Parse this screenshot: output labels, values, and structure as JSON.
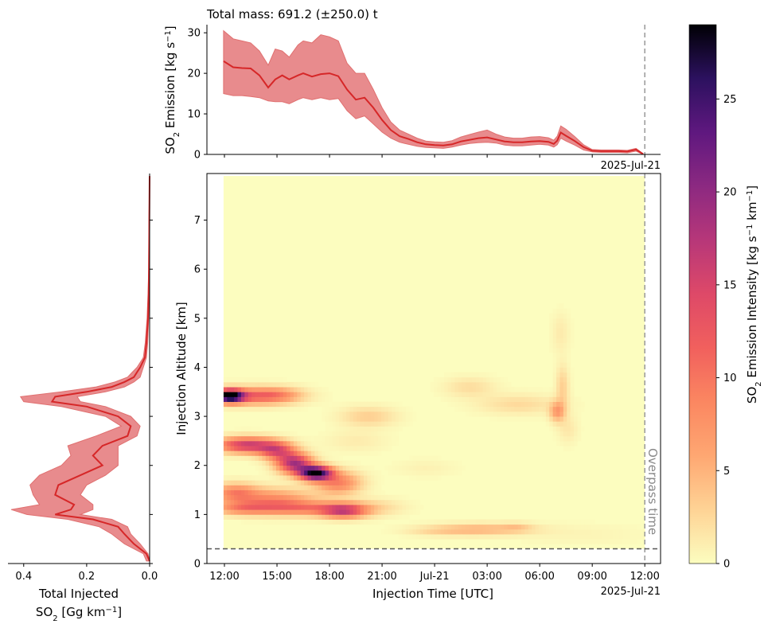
{
  "figure": {
    "top_title": "Total mass: 691.2 (±250.0) t",
    "top_ylabel": "SO₂ Emission [kg s⁻¹]",
    "heat_ylabel": "Injection Altitude [km]",
    "heat_xlabel": "Injection Time [UTC]",
    "date_label": "2025-Jul-21",
    "date_label_top": "2025-Jul-21",
    "overpass_label": "Overpass time",
    "left_xlabel_line1": "Total Injected",
    "left_xlabel_line2": "SO₂ [Gg km⁻¹]",
    "colorbar_label": "SO₂ Emission Intensity [kg s⁻¹ km⁻¹]",
    "colors": {
      "series": "#d62728",
      "band": "#e88b8d",
      "overpass": "#999999",
      "threshold": "#555555"
    }
  },
  "chart_data": [
    {
      "type": "area",
      "name": "emission-time-series",
      "title": "Total mass: 691.2 (±250.0) t",
      "ylabel": "SO₂ Emission [kg s⁻¹]",
      "x_unit": "hours since 2025-07-20 12:00 UTC",
      "xlim": [
        -1,
        24.9
      ],
      "ylim": [
        0,
        32
      ],
      "yticks": [
        0,
        10,
        20,
        30
      ],
      "x": [
        -0.05,
        0.5,
        1,
        1.5,
        2,
        2.5,
        2.9,
        3.3,
        3.7,
        4.2,
        4.5,
        5,
        5.5,
        6,
        6.5,
        7,
        7.5,
        8,
        8.5,
        9,
        9.5,
        10,
        10.5,
        11,
        11.5,
        12,
        12.5,
        13,
        13.5,
        14,
        14.5,
        15,
        15.5,
        16,
        16.5,
        17,
        17.5,
        18,
        18.5,
        18.8,
        19,
        19.2,
        19.5,
        20,
        20.5,
        21,
        21.5,
        22,
        22.5,
        23,
        23.5,
        23.9
      ],
      "values": [
        23,
        21.5,
        21.3,
        21.2,
        19.5,
        16.5,
        18.5,
        19.5,
        18.5,
        19.5,
        20,
        19.2,
        19.8,
        20,
        19.3,
        16,
        13.5,
        14,
        11.5,
        8.5,
        6,
        4.5,
        3.8,
        3,
        2.5,
        2.3,
        2.2,
        2.5,
        3.2,
        3.6,
        4,
        4.2,
        3.7,
        3.2,
        3,
        3,
        3.2,
        3.3,
        3.1,
        2.6,
        3.4,
        5.4,
        4.6,
        3.3,
        1.8,
        0.9,
        0.8,
        0.8,
        0.8,
        0.7,
        1.2,
        0.1
      ],
      "lower": [
        15,
        14.5,
        14.5,
        14.3,
        14,
        13.2,
        13,
        13,
        12.5,
        13.5,
        14,
        13.5,
        14,
        13.5,
        13.8,
        10.8,
        8.8,
        9.5,
        7.5,
        5.5,
        4,
        3,
        2.5,
        2,
        1.7,
        1.6,
        1.5,
        1.8,
        2.3,
        2.7,
        2.9,
        3,
        2.8,
        2.3,
        2.1,
        2.1,
        2.3,
        2.5,
        2.3,
        1.8,
        2.4,
        4,
        3.3,
        2.3,
        1.1,
        0.6,
        0.5,
        0.5,
        0.5,
        0.4,
        0.8,
        0
      ],
      "upper": [
        30.5,
        28.5,
        28,
        27.5,
        25.5,
        22,
        26,
        25.5,
        24,
        27,
        28,
        27.5,
        29.5,
        29,
        28,
        22.5,
        20,
        20,
        16,
        11.5,
        8,
        6,
        5,
        4,
        3.3,
        3.1,
        3,
        3.4,
        4.3,
        4.9,
        5.5,
        6,
        5,
        4.3,
        4,
        4,
        4.3,
        4.4,
        4.1,
        3.5,
        4.5,
        7,
        6.2,
        4.4,
        2.4,
        1.2,
        1.1,
        1.1,
        1.1,
        1,
        1.5,
        0.2
      ]
    },
    {
      "type": "heatmap",
      "name": "emission-intensity",
      "xlabel": "Injection Time [UTC]",
      "ylabel": "Injection Altitude [km]",
      "x_unit": "hours since 2025-07-20 12:00 UTC",
      "xlim": [
        -1,
        24.9
      ],
      "ylim": [
        0,
        7.95
      ],
      "xticks": [
        0,
        3,
        6,
        9,
        12,
        15,
        18,
        21,
        24
      ],
      "xticklabels": [
        "12:00",
        "15:00",
        "18:00",
        "21:00",
        "Jul-21",
        "03:00",
        "06:00",
        "09:00",
        "12:00"
      ],
      "yticks": [
        0,
        1,
        2,
        3,
        4,
        5,
        6,
        7
      ],
      "data_extent": {
        "time": [
          -0.05,
          24
        ],
        "altitude": [
          0.3,
          7.9
        ]
      },
      "colormap": "magma_r",
      "clim": [
        0,
        29
      ],
      "features": [
        {
          "t": 0.3,
          "alt": 3.42,
          "st": 0.55,
          "sa": 0.09,
          "v": 28
        },
        {
          "t": 1.8,
          "alt": 3.42,
          "st": 1.5,
          "sa": 0.12,
          "v": 11
        },
        {
          "t": 3.2,
          "alt": 3.45,
          "st": 0.9,
          "sa": 0.1,
          "v": 3
        },
        {
          "t": 1.3,
          "alt": 2.42,
          "st": 1.2,
          "sa": 0.11,
          "v": 16
        },
        {
          "t": 3.0,
          "alt": 2.3,
          "st": 0.7,
          "sa": 0.12,
          "v": 12
        },
        {
          "t": 4.0,
          "alt": 2.05,
          "st": 0.7,
          "sa": 0.14,
          "v": 18
        },
        {
          "t": 5.2,
          "alt": 1.85,
          "st": 0.65,
          "sa": 0.1,
          "v": 28
        },
        {
          "t": 6.5,
          "alt": 1.65,
          "st": 0.9,
          "sa": 0.16,
          "v": 9
        },
        {
          "t": 0.6,
          "alt": 1.45,
          "st": 0.9,
          "sa": 0.13,
          "v": 8
        },
        {
          "t": 2.8,
          "alt": 1.3,
          "st": 1.6,
          "sa": 0.16,
          "v": 8
        },
        {
          "t": 1.0,
          "alt": 1.13,
          "st": 1.2,
          "sa": 0.09,
          "v": 7
        },
        {
          "t": 4.5,
          "alt": 1.13,
          "st": 1.8,
          "sa": 0.1,
          "v": 8
        },
        {
          "t": 6.8,
          "alt": 1.08,
          "st": 0.9,
          "sa": 0.1,
          "v": 14
        },
        {
          "t": 8.5,
          "alt": 1.15,
          "st": 1.2,
          "sa": 0.12,
          "v": 2.5
        },
        {
          "t": 8.2,
          "alt": 3.0,
          "st": 1.1,
          "sa": 0.14,
          "v": 3.2
        },
        {
          "t": 7.5,
          "alt": 2.5,
          "st": 1.2,
          "sa": 0.15,
          "v": 1.2
        },
        {
          "t": 11.5,
          "alt": 1.95,
          "st": 1.2,
          "sa": 0.12,
          "v": 0.8
        },
        {
          "t": 14.0,
          "alt": 3.6,
          "st": 1.0,
          "sa": 0.14,
          "v": 2.2
        },
        {
          "t": 16.8,
          "alt": 3.25,
          "st": 1.6,
          "sa": 0.14,
          "v": 2.4
        },
        {
          "t": 19.0,
          "alt": 3.1,
          "st": 0.3,
          "sa": 0.14,
          "v": 6.5
        },
        {
          "t": 19.3,
          "alt": 3.6,
          "st": 0.25,
          "sa": 0.3,
          "v": 3.2
        },
        {
          "t": 19.2,
          "alt": 4.7,
          "st": 0.35,
          "sa": 0.28,
          "v": 1.3
        },
        {
          "t": 19.6,
          "alt": 2.75,
          "st": 0.4,
          "sa": 0.2,
          "v": 1.5
        },
        {
          "t": 14.5,
          "alt": 0.7,
          "st": 2.0,
          "sa": 0.08,
          "v": 5
        },
        {
          "t": 16.7,
          "alt": 0.75,
          "st": 0.6,
          "sa": 0.06,
          "v": 2
        },
        {
          "t": 12.0,
          "alt": 0.65,
          "st": 1.2,
          "sa": 0.06,
          "v": 1.3
        },
        {
          "t": 20.5,
          "alt": 0.6,
          "st": 2.5,
          "sa": 0.15,
          "v": 0.6
        }
      ],
      "overpass_time": 24,
      "threshold_altitude": 0.3,
      "annotation": "Overpass time"
    },
    {
      "type": "area",
      "name": "vertical-profile",
      "xlabel": "Total Injected SO₂ [Gg km⁻¹]",
      "orientation": "horizontal, x axis inverted",
      "xlim": [
        0.45,
        0
      ],
      "xticks": [
        0.4,
        0.2,
        0.0
      ],
      "xticklabels": [
        "0.4",
        "0.2",
        "0.0"
      ],
      "ylim": [
        0,
        7.95
      ],
      "altitude": [
        0.05,
        0.2,
        0.4,
        0.6,
        0.75,
        0.9,
        1.0,
        1.1,
        1.2,
        1.4,
        1.6,
        1.8,
        2.0,
        2.2,
        2.4,
        2.6,
        2.8,
        3.0,
        3.2,
        3.3,
        3.4,
        3.5,
        3.6,
        3.7,
        3.8,
        3.9,
        4.0,
        4.2,
        4.5,
        5.0,
        5.5,
        6.0,
        7.0,
        7.9
      ],
      "values": [
        0,
        0.01,
        0.05,
        0.08,
        0.1,
        0.18,
        0.3,
        0.25,
        0.24,
        0.3,
        0.29,
        0.22,
        0.15,
        0.18,
        0.15,
        0.07,
        0.06,
        0.1,
        0.2,
        0.31,
        0.3,
        0.2,
        0.12,
        0.08,
        0.05,
        0.04,
        0.03,
        0.015,
        0.01,
        0.005,
        0.003,
        0.002,
        0.001,
        0
      ],
      "lower": [
        0,
        0.005,
        0.03,
        0.06,
        0.07,
        0.12,
        0.22,
        0.18,
        0.18,
        0.22,
        0.2,
        0.14,
        0.1,
        0.1,
        0.1,
        0.04,
        0.03,
        0.06,
        0.14,
        0.22,
        0.23,
        0.14,
        0.08,
        0.05,
        0.03,
        0.025,
        0.02,
        0.01,
        0.006,
        0.003,
        0.002,
        0.001,
        0.0005,
        0
      ],
      "upper": [
        0.01,
        0.02,
        0.08,
        0.12,
        0.16,
        0.26,
        0.39,
        0.44,
        0.35,
        0.37,
        0.38,
        0.35,
        0.28,
        0.25,
        0.26,
        0.17,
        0.09,
        0.14,
        0.28,
        0.4,
        0.41,
        0.28,
        0.17,
        0.11,
        0.07,
        0.055,
        0.04,
        0.02,
        0.014,
        0.008,
        0.005,
        0.003,
        0.002,
        0
      ]
    },
    {
      "type": "colorbar",
      "name": "intensity-colorbar",
      "label": "SO₂ Emission Intensity [kg s⁻¹ km⁻¹]",
      "range": [
        0,
        29
      ],
      "ticks": [
        0,
        5,
        10,
        15,
        20,
        25
      ]
    }
  ]
}
